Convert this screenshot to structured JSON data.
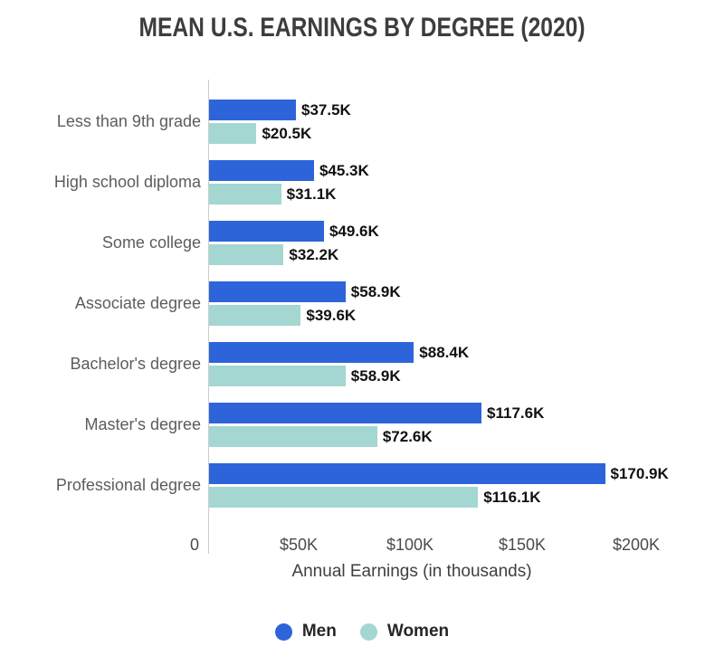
{
  "title": "MEAN U.S. EARNINGS BY DEGREE (2020)",
  "colors": {
    "men": "#2e64d9",
    "women": "#a4d7d1",
    "axis_line": "#cccccc",
    "title_text": "#3d3d3d",
    "category_text": "#5c5c5c",
    "value_text": "#111111"
  },
  "chart_data": {
    "type": "bar",
    "orientation": "horizontal",
    "title": "MEAN U.S. EARNINGS BY DEGREE (2020)",
    "xlabel": "Annual Earnings (in thousands)",
    "ylabel": "",
    "xlim": [
      0,
      200
    ],
    "grid": false,
    "legend_position": "bottom",
    "categories": [
      "Less than 9th grade",
      "High school diploma",
      "Some college",
      "Associate degree",
      "Bachelor's degree",
      "Master's degree",
      "Professional degree"
    ],
    "series": [
      {
        "name": "Men",
        "color": "#2e64d9",
        "values": [
          37.5,
          45.3,
          49.6,
          58.9,
          88.4,
          117.6,
          170.9
        ],
        "labels": [
          "$37.5K",
          "$45.3K",
          "$49.6K",
          "$58.9K",
          "$88.4K",
          "$117.6K",
          "$170.9K"
        ]
      },
      {
        "name": "Women",
        "color": "#a4d7d1",
        "values": [
          20.5,
          31.1,
          32.2,
          39.6,
          58.9,
          72.6,
          116.1
        ],
        "labels": [
          "$20.5K",
          "$31.1K",
          "$32.2K",
          "$39.6K",
          "$58.9K",
          "$72.6K",
          "$116.1K"
        ]
      }
    ],
    "x_ticks": [
      "0",
      "$50K",
      "$100K",
      "$150K",
      "$200K"
    ]
  }
}
